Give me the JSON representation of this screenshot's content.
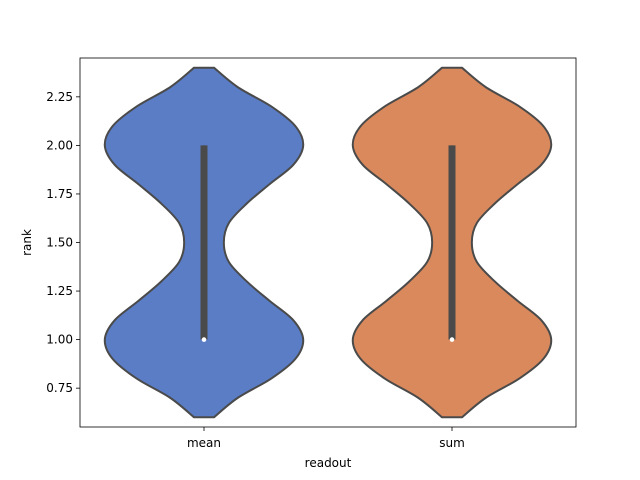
{
  "chart_data": {
    "type": "violin",
    "title": "",
    "xlabel": "readout",
    "ylabel": "rank",
    "ylim": [
      0.55,
      2.45
    ],
    "yticks": [
      0.75,
      1.0,
      1.25,
      1.5,
      1.75,
      2.0,
      2.25
    ],
    "ytick_labels": [
      "0.75",
      "1.00",
      "1.25",
      "1.50",
      "1.75",
      "2.00",
      "2.25"
    ],
    "grid": false,
    "categories": [
      "mean",
      "sum"
    ],
    "series": [
      {
        "category": "mean",
        "color": "#5a7dc5",
        "density_y": [
          0.6,
          0.7,
          0.8,
          0.9,
          1.0,
          1.1,
          1.2,
          1.3,
          1.4,
          1.5,
          1.6,
          1.7,
          1.8,
          1.9,
          2.0,
          2.1,
          2.2,
          2.3,
          2.4
        ],
        "density_w": [
          0.1,
          0.34,
          0.68,
          0.92,
          1.0,
          0.9,
          0.66,
          0.43,
          0.25,
          0.2,
          0.25,
          0.43,
          0.66,
          0.9,
          1.0,
          0.92,
          0.68,
          0.34,
          0.1
        ],
        "q1": 1.0,
        "median": 1.0,
        "q3": 2.0,
        "whisker_low": 1.0,
        "whisker_high": 2.0
      },
      {
        "category": "sum",
        "color": "#d9895c",
        "density_y": [
          0.6,
          0.7,
          0.8,
          0.9,
          1.0,
          1.1,
          1.2,
          1.3,
          1.4,
          1.5,
          1.6,
          1.7,
          1.8,
          1.9,
          2.0,
          2.1,
          2.2,
          2.3,
          2.4
        ],
        "density_w": [
          0.1,
          0.34,
          0.68,
          0.92,
          1.0,
          0.9,
          0.66,
          0.43,
          0.25,
          0.2,
          0.25,
          0.43,
          0.66,
          0.9,
          1.0,
          0.92,
          0.68,
          0.34,
          0.1
        ],
        "q1": 1.0,
        "median": 1.0,
        "q3": 2.0,
        "whisker_low": 1.0,
        "whisker_high": 2.0
      }
    ]
  }
}
